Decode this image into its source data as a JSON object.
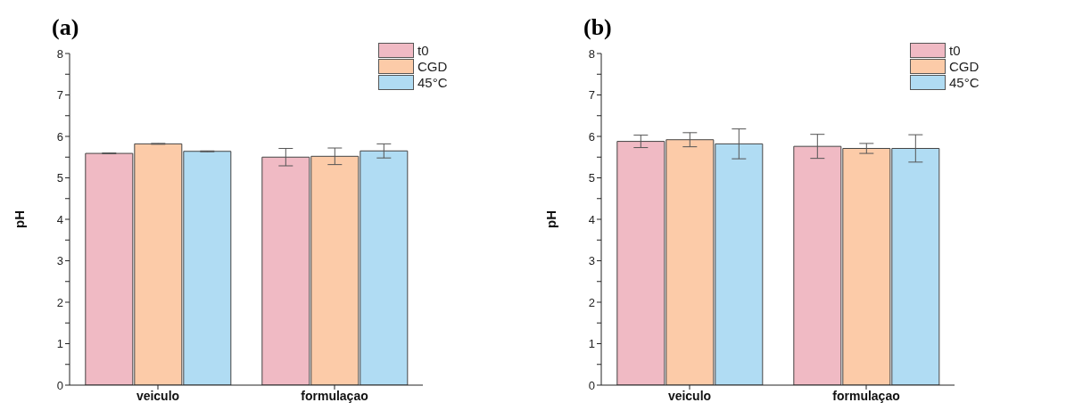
{
  "chart_data": [
    {
      "type": "bar",
      "title": "(a)",
      "ylabel": "pH",
      "categories": [
        "veiculo",
        "formulaçao"
      ],
      "ylim": [
        0,
        8
      ],
      "yticks": [
        0,
        {
          "value": 0.5,
          "label": null
        },
        1,
        {
          "value": 1.5,
          "label": null
        },
        2,
        {
          "value": 2.5,
          "label": null
        },
        3,
        {
          "value": 3.5,
          "label": null
        },
        4,
        {
          "value": 4.5,
          "label": null
        },
        5,
        {
          "value": 5.5,
          "label": null
        },
        6,
        {
          "value": 6.5,
          "label": null
        },
        7,
        {
          "value": 7.5,
          "label": null
        },
        8
      ],
      "legend": "top right",
      "grid": false,
      "series": [
        {
          "name": "t0",
          "color": "#f0bac4",
          "values": [
            5.59,
            5.5
          ],
          "errors": [
            0.01,
            0.21
          ]
        },
        {
          "name": "CGD",
          "color": "#fccba8",
          "values": [
            5.82,
            5.52
          ],
          "errors": [
            0.01,
            0.2
          ]
        },
        {
          "name": "45°C",
          "color": "#b0dcf3",
          "values": [
            5.64,
            5.65
          ],
          "errors": [
            0.01,
            0.17
          ]
        }
      ]
    },
    {
      "type": "bar",
      "title": "(b)",
      "ylabel": "pH",
      "categories": [
        "veiculo",
        "formulaçao"
      ],
      "ylim": [
        0,
        8
      ],
      "yticks": [
        0,
        {
          "value": 0.5,
          "label": null
        },
        1,
        {
          "value": 1.5,
          "label": null
        },
        2,
        {
          "value": 2.5,
          "label": null
        },
        3,
        {
          "value": 3.5,
          "label": null
        },
        4,
        {
          "value": 4.5,
          "label": null
        },
        5,
        {
          "value": 5.5,
          "label": null
        },
        6,
        {
          "value": 6.5,
          "label": null
        },
        7,
        {
          "value": 7.5,
          "label": null
        },
        8
      ],
      "legend": "top right",
      "grid": false,
      "series": [
        {
          "name": "t0",
          "color": "#f0bac4",
          "values": [
            5.88,
            5.76
          ],
          "errors": [
            0.15,
            0.29
          ]
        },
        {
          "name": "CGD",
          "color": "#fccba8",
          "values": [
            5.92,
            5.71
          ],
          "errors": [
            0.17,
            0.12
          ]
        },
        {
          "name": "45°C",
          "color": "#b0dcf3",
          "values": [
            5.82,
            5.71
          ],
          "errors": [
            0.36,
            0.33
          ]
        }
      ]
    }
  ]
}
